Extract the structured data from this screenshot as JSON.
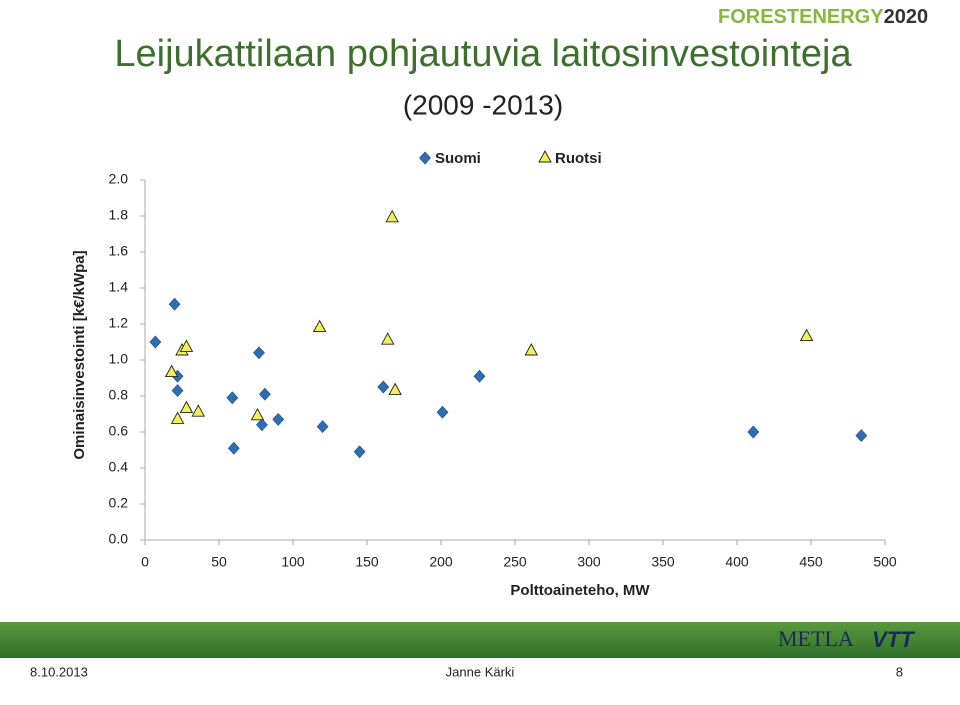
{
  "logo": {
    "brand": "FORESTENERGY",
    "year": "2020",
    "partner_1": "METLA",
    "partner_2": "VTT"
  },
  "footer": {
    "date": "8.10.2013",
    "author": "Janne Kärki",
    "page": "8"
  },
  "chart_data": {
    "type": "scatter",
    "title": "Leijukattilaan pohjautuvia laitosinvestointeja",
    "subtitle": "(2009 -2013)",
    "x_label": "Polttoaineteho, MW",
    "y_label": "Ominaisinvestointi [k€/kWpa]",
    "xlim": [
      0,
      500
    ],
    "xticks": [
      0,
      50,
      100,
      150,
      200,
      250,
      300,
      350,
      400,
      450,
      500
    ],
    "ylim": [
      0,
      2
    ],
    "yticks": [
      {
        "value": 0,
        "label": "0.0"
      },
      {
        "value": 0.2,
        "label": "0.2"
      },
      {
        "value": 0.4,
        "label": "0.4"
      },
      {
        "value": 0.6,
        "label": "0.6"
      },
      {
        "value": 0.8,
        "label": "0.8"
      },
      {
        "value": 1,
        "label": "1.0"
      },
      {
        "value": 1.2,
        "label": "1.2"
      },
      {
        "value": 1.4,
        "label": "1.4"
      },
      {
        "value": 1.6,
        "label": "1.6"
      },
      {
        "value": 1.8,
        "label": "1.8"
      },
      {
        "value": 2,
        "label": "2.0"
      }
    ],
    "grid": false,
    "legend": "top",
    "series": [
      {
        "name": "Suomi",
        "color": "#2e6db4",
        "marker": "diamond",
        "x": [
          7,
          20,
          22,
          22,
          59,
          60,
          77,
          79,
          81,
          90,
          120,
          145,
          161,
          201,
          226,
          411,
          484
        ],
        "values": [
          1.1,
          1.31,
          0.91,
          0.83,
          0.79,
          0.51,
          1.04,
          0.64,
          0.81,
          0.67,
          0.63,
          0.49,
          0.85,
          0.71,
          0.91,
          0.6,
          0.58
        ]
      },
      {
        "name": "Ruotsi",
        "color": "#f2f05a",
        "marker": "triangle",
        "x": [
          18,
          22,
          25,
          28,
          28,
          36,
          76,
          118,
          164,
          167,
          169,
          261,
          447
        ],
        "values": [
          0.93,
          0.67,
          1.05,
          1.07,
          0.73,
          0.71,
          0.69,
          1.18,
          1.11,
          1.79,
          0.83,
          1.05,
          1.13
        ]
      }
    ]
  }
}
